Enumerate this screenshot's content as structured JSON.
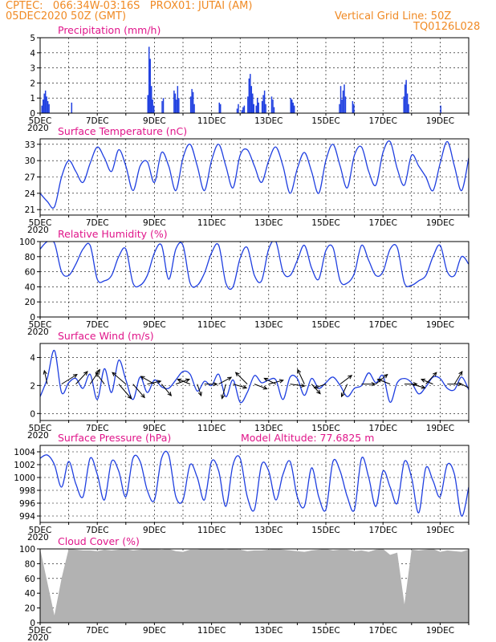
{
  "header": {
    "line1": "CPTEC:   066:34W-03:16S   PROX01: JUTAI (AM)",
    "line2_left": "05DEC2020 50Z (GMT)",
    "line2_right": "Vertical Grid Line: 50Z",
    "line3_right": "TQ0126L028"
  },
  "colors": {
    "header": "#f08a24",
    "title": "#e0158a",
    "line": "#1f3fe0",
    "bar": "#1f3fe0",
    "cloud": "#b2b2b2"
  },
  "x_axis": {
    "start": "05DEC2020 00Z",
    "end": "20DEC2020 00Z",
    "tick_labels": [
      "5DEC",
      "7DEC",
      "9DEC",
      "11DEC",
      "13DEC",
      "15DEC",
      "17DEC",
      "19DEC"
    ],
    "start_fragment": "2020"
  },
  "chart_data": [
    {
      "id": "precip",
      "type": "bar",
      "title": "Precipitation (mm/h)",
      "ylim": [
        0,
        5
      ],
      "yticks": [
        0,
        1,
        2,
        3,
        4,
        5
      ],
      "x_unit": "hours since 05DEC2020 00Z",
      "points": [
        [
          1,
          0.5
        ],
        [
          2,
          0.9
        ],
        [
          3,
          1.3
        ],
        [
          4,
          1.5
        ],
        [
          5,
          1.1
        ],
        [
          6,
          0.8
        ],
        [
          7,
          0.6
        ],
        [
          26,
          0.7
        ],
        [
          90,
          1.2
        ],
        [
          91,
          4.4
        ],
        [
          92,
          3.6
        ],
        [
          93,
          1.8
        ],
        [
          94,
          0.9
        ],
        [
          95,
          0.5
        ],
        [
          102,
          0.8
        ],
        [
          103,
          1.0
        ],
        [
          112,
          1.5
        ],
        [
          113,
          1.3
        ],
        [
          114,
          0.9
        ],
        [
          115,
          1.8
        ],
        [
          116,
          1.0
        ],
        [
          126,
          1.1
        ],
        [
          127,
          1.6
        ],
        [
          128,
          1.4
        ],
        [
          129,
          0.6
        ],
        [
          150,
          0.7
        ],
        [
          151,
          0.6
        ],
        [
          165,
          0.3
        ],
        [
          166,
          0.6
        ],
        [
          169,
          0.2
        ],
        [
          170,
          0.4
        ],
        [
          171,
          0.5
        ],
        [
          174,
          1.1
        ],
        [
          175,
          2.3
        ],
        [
          176,
          2.6
        ],
        [
          177,
          1.8
        ],
        [
          178,
          1.3
        ],
        [
          179,
          0.6
        ],
        [
          181,
          0.5
        ],
        [
          182,
          1.0
        ],
        [
          183,
          0.7
        ],
        [
          186,
          0.8
        ],
        [
          187,
          1.2
        ],
        [
          188,
          1.5
        ],
        [
          189,
          0.6
        ],
        [
          194,
          1.1
        ],
        [
          195,
          0.9
        ],
        [
          196,
          0.4
        ],
        [
          210,
          1.0
        ],
        [
          211,
          0.9
        ],
        [
          212,
          0.7
        ],
        [
          213,
          0.5
        ],
        [
          251,
          0.6
        ],
        [
          252,
          1.8
        ],
        [
          253,
          0.9
        ],
        [
          254,
          1.5
        ],
        [
          255,
          1.9
        ],
        [
          256,
          1.1
        ],
        [
          262,
          0.8
        ],
        [
          263,
          0.6
        ],
        [
          305,
          1.1
        ],
        [
          306,
          1.9
        ],
        [
          307,
          2.2
        ],
        [
          308,
          1.3
        ],
        [
          309,
          0.6
        ],
        [
          336,
          0.5
        ]
      ]
    },
    {
      "id": "temp",
      "type": "line",
      "title": "Surface Temperature (nC)",
      "ylim": [
        20,
        34
      ],
      "yticks": [
        21,
        24,
        27,
        30,
        33
      ],
      "x_unit": "hours since 05DEC2020 00Z",
      "x": [
        0,
        6,
        12,
        18,
        24,
        30,
        36,
        42,
        48,
        54,
        60,
        66,
        72,
        78,
        84,
        90,
        96,
        102,
        108,
        114,
        120,
        126,
        132,
        138,
        144,
        150,
        156,
        162,
        168,
        174,
        180,
        186,
        192,
        198,
        204,
        210,
        216,
        222,
        228,
        234,
        240,
        246,
        252,
        258,
        264,
        270,
        276,
        282,
        288,
        294,
        300,
        306,
        312,
        318,
        324,
        330,
        336,
        342,
        348,
        354,
        360
      ],
      "y": [
        24.0,
        22.5,
        21.5,
        27.0,
        30.0,
        28.0,
        26.0,
        29.5,
        32.5,
        30.5,
        28.0,
        32.0,
        29.0,
        24.5,
        29.0,
        29.8,
        26.0,
        31.5,
        29.0,
        24.5,
        30.5,
        33.0,
        29.0,
        24.5,
        30.0,
        33.0,
        29.0,
        25.0,
        31.0,
        32.0,
        29.0,
        26.0,
        30.0,
        32.5,
        29.0,
        24.0,
        28.5,
        31.5,
        28.0,
        24.0,
        30.0,
        33.0,
        29.0,
        25.0,
        31.0,
        32.5,
        28.0,
        25.5,
        31.5,
        33.5,
        28.5,
        25.5,
        31.0,
        29.0,
        27.0,
        24.5,
        29.5,
        33.5,
        29.0,
        24.5,
        30.5
      ]
    },
    {
      "id": "rh",
      "type": "line",
      "title": "Relative Humidity (%)",
      "ylim": [
        0,
        100
      ],
      "yticks": [
        0,
        20,
        40,
        60,
        80,
        100
      ],
      "x_unit": "hours since 05DEC2020 00Z",
      "x": [
        0,
        6,
        12,
        18,
        24,
        30,
        36,
        42,
        48,
        54,
        60,
        66,
        72,
        78,
        84,
        90,
        96,
        102,
        108,
        114,
        120,
        126,
        132,
        138,
        144,
        150,
        156,
        162,
        168,
        174,
        180,
        186,
        192,
        198,
        204,
        210,
        216,
        222,
        228,
        234,
        240,
        246,
        252,
        258,
        264,
        270,
        276,
        282,
        288,
        294,
        300,
        306,
        312,
        318,
        324,
        330,
        336,
        342,
        348,
        354,
        360
      ],
      "y": [
        90,
        100,
        98,
        60,
        55,
        70,
        90,
        95,
        50,
        48,
        55,
        80,
        90,
        45,
        42,
        55,
        85,
        95,
        50,
        90,
        95,
        45,
        42,
        58,
        85,
        95,
        45,
        40,
        78,
        92,
        55,
        48,
        90,
        100,
        60,
        55,
        75,
        95,
        65,
        50,
        88,
        92,
        48,
        45,
        58,
        95,
        75,
        55,
        60,
        90,
        92,
        45,
        42,
        48,
        55,
        80,
        95,
        60,
        55,
        80,
        70
      ]
    },
    {
      "id": "wind",
      "type": "line",
      "title": "Surface Wind (m/s)",
      "ylim": [
        -0.5,
        5
      ],
      "yticks": [
        0,
        2,
        4
      ],
      "x_unit": "hours since 05DEC2020 00Z",
      "x": [
        0,
        6,
        12,
        18,
        24,
        30,
        36,
        42,
        48,
        54,
        60,
        66,
        72,
        78,
        84,
        90,
        96,
        102,
        108,
        114,
        120,
        126,
        132,
        138,
        144,
        150,
        156,
        162,
        168,
        174,
        180,
        186,
        192,
        198,
        204,
        210,
        216,
        222,
        228,
        234,
        240,
        246,
        252,
        258,
        264,
        270,
        276,
        282,
        288,
        294,
        300,
        306,
        312,
        318,
        324,
        330,
        336,
        342,
        348,
        354,
        360
      ],
      "y": [
        1.2,
        2.5,
        4.5,
        1.5,
        2.2,
        2.5,
        1.8,
        2.8,
        1.0,
        3.2,
        1.5,
        3.8,
        2.4,
        1.0,
        2.6,
        1.5,
        2.4,
        1.9,
        1.8,
        2.4,
        3.0,
        2.8,
        1.6,
        2.3,
        2.0,
        2.8,
        1.2,
        2.4,
        0.8,
        1.5,
        2.7,
        2.2,
        2.4,
        2.4,
        1.0,
        2.6,
        2.5,
        1.3,
        2.5,
        1.8,
        2.2,
        2.6,
        2.0,
        1.2,
        1.8,
        2.0,
        2.9,
        2.2,
        2.7,
        0.8,
        2.2,
        2.5,
        2.2,
        1.4,
        1.9,
        2.6,
        2.5,
        1.8,
        1.7,
        2.6,
        1.7
      ]
    },
    {
      "id": "pressure",
      "type": "line",
      "title": "Surface Pressure (hPa)",
      "annotation": "Model Altitude: 77.6825 m",
      "ylim": [
        993,
        1005
      ],
      "yticks": [
        994,
        996,
        998,
        1000,
        1002,
        1004
      ],
      "x_unit": "hours since 05DEC2020 00Z",
      "x": [
        0,
        6,
        12,
        18,
        24,
        30,
        36,
        42,
        48,
        54,
        60,
        66,
        72,
        78,
        84,
        90,
        96,
        102,
        108,
        114,
        120,
        126,
        132,
        138,
        144,
        150,
        156,
        162,
        168,
        174,
        180,
        186,
        192,
        198,
        204,
        210,
        216,
        222,
        228,
        234,
        240,
        246,
        252,
        258,
        264,
        270,
        276,
        282,
        288,
        294,
        300,
        306,
        312,
        318,
        324,
        330,
        336,
        342,
        348,
        354,
        360
      ],
      "y": [
        1003.0,
        1003.5,
        1002.0,
        998.5,
        1002.5,
        999.0,
        997.0,
        1003.0,
        1000.5,
        996.5,
        1002.5,
        1001.0,
        997.0,
        1003.0,
        1002.5,
        998.0,
        996.5,
        1003.0,
        1003.5,
        997.0,
        996.5,
        1002.0,
        1000.0,
        996.5,
        1002.5,
        1001.0,
        995.5,
        1002.0,
        1003.0,
        997.0,
        995.0,
        1002.0,
        1001.0,
        996.5,
        1000.5,
        1002.5,
        997.0,
        995.5,
        1001.5,
        997.0,
        995.0,
        1002.5,
        1001.0,
        997.0,
        995.0,
        1003.0,
        1000.0,
        995.5,
        1001.0,
        998.5,
        996.0,
        1002.5,
        1000.0,
        994.5,
        1001.5,
        999.5,
        997.0,
        1002.0,
        1000.5,
        994.0,
        998.5
      ]
    },
    {
      "id": "cloud",
      "type": "area",
      "title": "Cloud Cover (%)",
      "ylim": [
        0,
        100
      ],
      "yticks": [
        0,
        20,
        40,
        60,
        80,
        100
      ],
      "x_unit": "hours since 05DEC2020 00Z",
      "x": [
        0,
        6,
        12,
        18,
        24,
        30,
        36,
        42,
        48,
        54,
        60,
        66,
        72,
        78,
        84,
        90,
        96,
        102,
        108,
        114,
        120,
        126,
        132,
        138,
        144,
        150,
        156,
        162,
        168,
        174,
        180,
        186,
        192,
        198,
        204,
        210,
        216,
        222,
        228,
        234,
        240,
        246,
        252,
        258,
        264,
        270,
        276,
        282,
        288,
        294,
        300,
        306,
        312,
        318,
        324,
        330,
        336,
        342,
        348,
        354,
        360
      ],
      "y": [
        100,
        55,
        10,
        60,
        100,
        99,
        98,
        98,
        97,
        99,
        98,
        99,
        100,
        98,
        99,
        100,
        100,
        99,
        100,
        97,
        96,
        99,
        99,
        100,
        100,
        100,
        99,
        100,
        99,
        97,
        98,
        98,
        99,
        100,
        99,
        98,
        97,
        96,
        98,
        99,
        100,
        98,
        99,
        99,
        97,
        98,
        96,
        99,
        100,
        92,
        95,
        25,
        99,
        98,
        99,
        100,
        96,
        98,
        97,
        96,
        99
      ]
    }
  ],
  "wind_arrows_note": "",
  "wind_arrows": [
    [
      6,
      -0.3,
      1.4
    ],
    [
      18,
      1.6,
      1.0
    ],
    [
      30,
      1.2,
      1.3
    ],
    [
      42,
      1.0,
      1.5
    ],
    [
      54,
      -0.9,
      1.2
    ],
    [
      66,
      1.3,
      -1.5
    ],
    [
      72,
      -1.4,
      1.2
    ],
    [
      78,
      1.2,
      -1.4
    ],
    [
      90,
      1.4,
      0.3
    ],
    [
      96,
      -1.4,
      0.8
    ],
    [
      102,
      1.0,
      -1.2
    ],
    [
      114,
      1.4,
      0.5
    ],
    [
      126,
      -1.3,
      0.5
    ],
    [
      132,
      0.4,
      -1.2
    ],
    [
      138,
      1.3,
      0.0
    ],
    [
      150,
      1.3,
      0.7
    ],
    [
      156,
      -0.4,
      -1.5
    ],
    [
      162,
      1.4,
      -0.4
    ],
    [
      174,
      -1.2,
      1.2
    ],
    [
      180,
      1.3,
      -0.5
    ],
    [
      192,
      1.5,
      0.4
    ],
    [
      198,
      -1.2,
      0.6
    ],
    [
      210,
      1.5,
      -0.2
    ],
    [
      222,
      -0.7,
      1.5
    ],
    [
      228,
      0.9,
      -1.0
    ],
    [
      240,
      -1.2,
      -0.4
    ],
    [
      252,
      1.2,
      0.9
    ],
    [
      258,
      -0.6,
      -1.3
    ],
    [
      270,
      1.4,
      0.0
    ],
    [
      282,
      1.2,
      1.0
    ],
    [
      294,
      -1.3,
      0.5
    ],
    [
      306,
      1.3,
      0.0
    ],
    [
      312,
      1.4,
      -0.4
    ],
    [
      324,
      1.1,
      1.2
    ],
    [
      330,
      -1.2,
      0.5
    ],
    [
      342,
      1.5,
      0.0
    ],
    [
      348,
      0.8,
      1.3
    ],
    [
      354,
      1.3,
      -0.7
    ]
  ]
}
